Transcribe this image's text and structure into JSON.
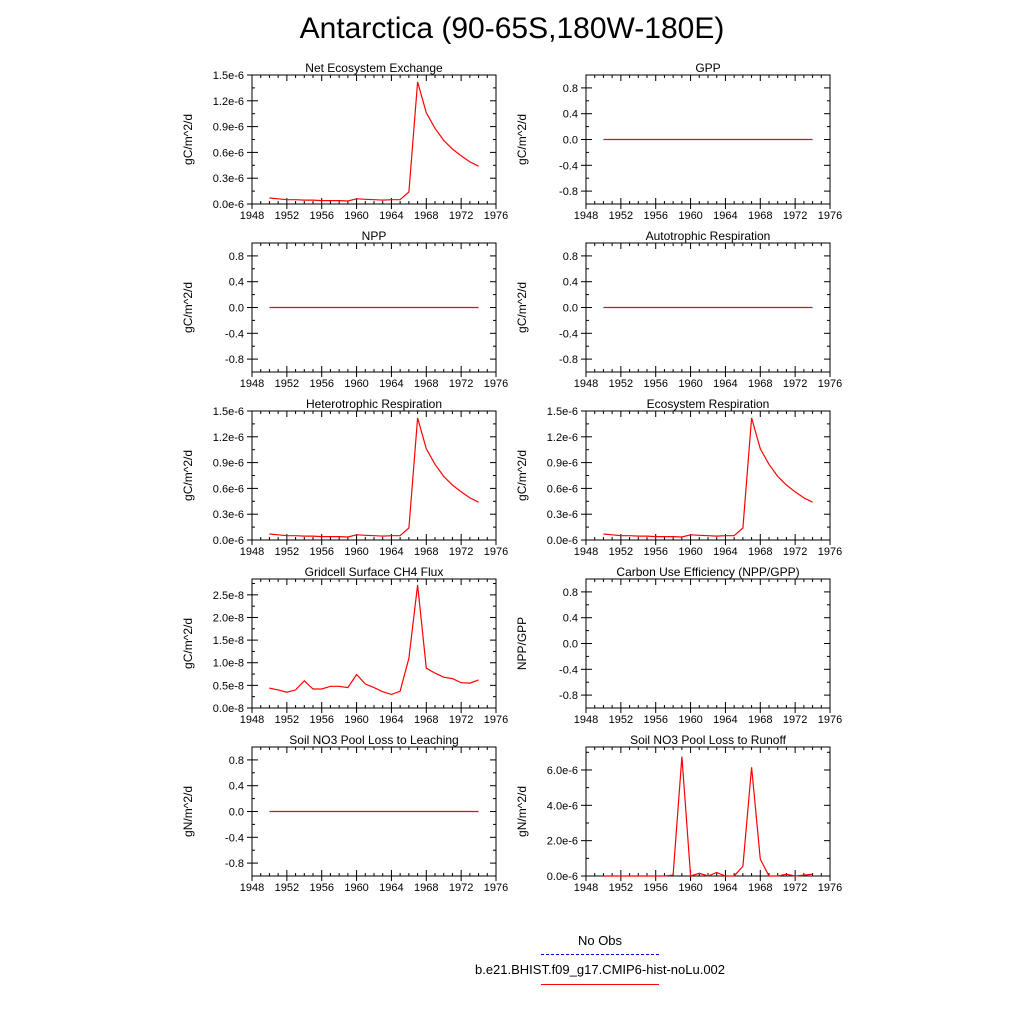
{
  "page": {
    "title": "Antarctica (90-65S,180W-180E)"
  },
  "legend": {
    "items": [
      {
        "label": "No Obs",
        "color": "#0000ff",
        "style": "dashed"
      },
      {
        "label": "b.e21.BHIST.f09_g17.CMIP6-hist-noLu.002",
        "color": "#ff0000",
        "style": "solid"
      }
    ]
  },
  "chart_data": [
    {
      "type": "line",
      "title": "Net Ecosystem Exchange",
      "ylabel": "gC/m^2/d",
      "xlim": [
        1948,
        1976
      ],
      "xticks": [
        "1948",
        "1952",
        "1956",
        "1960",
        "1964",
        "1968",
        "1972",
        "1976"
      ],
      "ylim": [
        0,
        1.5
      ],
      "yticks": [
        "0.0e-6",
        "0.3e-6",
        "0.6e-6",
        "0.9e-6",
        "1.2e-6",
        "1.5e-6"
      ],
      "ytick_values": [
        0,
        0.3,
        0.6,
        0.9,
        1.2,
        1.5
      ],
      "series": [
        {
          "color": "#ff0000",
          "x": [
            1950,
            1951,
            1952,
            1953,
            1954,
            1955,
            1956,
            1957,
            1958,
            1959,
            1960,
            1961,
            1962,
            1963,
            1964,
            1965,
            1966,
            1967,
            1968,
            1969,
            1970,
            1971,
            1972,
            1973,
            1974
          ],
          "y": [
            0.07,
            0.06,
            0.05,
            0.05,
            0.045,
            0.045,
            0.04,
            0.04,
            0.04,
            0.035,
            0.06,
            0.055,
            0.05,
            0.045,
            0.05,
            0.05,
            0.14,
            1.42,
            1.06,
            0.88,
            0.74,
            0.64,
            0.56,
            0.49,
            0.44
          ]
        }
      ]
    },
    {
      "type": "line",
      "title": "GPP",
      "ylabel": "gC/m^2/d",
      "xlim": [
        1948,
        1976
      ],
      "xticks": [
        "1948",
        "1952",
        "1956",
        "1960",
        "1964",
        "1968",
        "1972",
        "1976"
      ],
      "ylim": [
        -1,
        1
      ],
      "yticks": [
        "-0.8",
        "-0.4",
        "0.0",
        "0.4",
        "0.8"
      ],
      "ytick_values": [
        -0.8,
        -0.4,
        0,
        0.4,
        0.8
      ],
      "series": [
        {
          "color": "#ff0000",
          "x": [
            1950,
            1974
          ],
          "y": [
            0,
            0
          ]
        }
      ]
    },
    {
      "type": "line",
      "title": "NPP",
      "ylabel": "gC/m^2/d",
      "xlim": [
        1948,
        1976
      ],
      "xticks": [
        "1948",
        "1952",
        "1956",
        "1960",
        "1964",
        "1968",
        "1972",
        "1976"
      ],
      "ylim": [
        -1,
        1
      ],
      "yticks": [
        "-0.8",
        "-0.4",
        "0.0",
        "0.4",
        "0.8"
      ],
      "ytick_values": [
        -0.8,
        -0.4,
        0,
        0.4,
        0.8
      ],
      "series": [
        {
          "color": "#ff0000",
          "x": [
            1950,
            1974
          ],
          "y": [
            0,
            0
          ]
        }
      ]
    },
    {
      "type": "line",
      "title": "Autotrophic Respiration",
      "ylabel": "gC/m^2/d",
      "xlim": [
        1948,
        1976
      ],
      "xticks": [
        "1948",
        "1952",
        "1956",
        "1960",
        "1964",
        "1968",
        "1972",
        "1976"
      ],
      "ylim": [
        -1,
        1
      ],
      "yticks": [
        "-0.8",
        "-0.4",
        "0.0",
        "0.4",
        "0.8"
      ],
      "ytick_values": [
        -0.8,
        -0.4,
        0,
        0.4,
        0.8
      ],
      "series": [
        {
          "color": "#ff0000",
          "x": [
            1950,
            1974
          ],
          "y": [
            0,
            0
          ]
        }
      ]
    },
    {
      "type": "line",
      "title": "Heterotrophic Respiration",
      "ylabel": "gC/m^2/d",
      "xlim": [
        1948,
        1976
      ],
      "xticks": [
        "1948",
        "1952",
        "1956",
        "1960",
        "1964",
        "1968",
        "1972",
        "1976"
      ],
      "ylim": [
        0,
        1.5
      ],
      "yticks": [
        "0.0e-6",
        "0.3e-6",
        "0.6e-6",
        "0.9e-6",
        "1.2e-6",
        "1.5e-6"
      ],
      "ytick_values": [
        0,
        0.3,
        0.6,
        0.9,
        1.2,
        1.5
      ],
      "series": [
        {
          "color": "#ff0000",
          "x": [
            1950,
            1951,
            1952,
            1953,
            1954,
            1955,
            1956,
            1957,
            1958,
            1959,
            1960,
            1961,
            1962,
            1963,
            1964,
            1965,
            1966,
            1967,
            1968,
            1969,
            1970,
            1971,
            1972,
            1973,
            1974
          ],
          "y": [
            0.07,
            0.06,
            0.05,
            0.05,
            0.045,
            0.045,
            0.04,
            0.04,
            0.04,
            0.035,
            0.06,
            0.055,
            0.05,
            0.045,
            0.05,
            0.05,
            0.14,
            1.42,
            1.06,
            0.88,
            0.74,
            0.64,
            0.56,
            0.49,
            0.44
          ]
        }
      ]
    },
    {
      "type": "line",
      "title": "Ecosystem Respiration",
      "ylabel": "gC/m^2/d",
      "xlim": [
        1948,
        1976
      ],
      "xticks": [
        "1948",
        "1952",
        "1956",
        "1960",
        "1964",
        "1968",
        "1972",
        "1976"
      ],
      "ylim": [
        0,
        1.5
      ],
      "yticks": [
        "0.0e-6",
        "0.3e-6",
        "0.6e-6",
        "0.9e-6",
        "1.2e-6",
        "1.5e-6"
      ],
      "ytick_values": [
        0,
        0.3,
        0.6,
        0.9,
        1.2,
        1.5
      ],
      "series": [
        {
          "color": "#ff0000",
          "x": [
            1950,
            1951,
            1952,
            1953,
            1954,
            1955,
            1956,
            1957,
            1958,
            1959,
            1960,
            1961,
            1962,
            1963,
            1964,
            1965,
            1966,
            1967,
            1968,
            1969,
            1970,
            1971,
            1972,
            1973,
            1974
          ],
          "y": [
            0.07,
            0.06,
            0.05,
            0.05,
            0.045,
            0.045,
            0.04,
            0.04,
            0.04,
            0.035,
            0.06,
            0.055,
            0.05,
            0.045,
            0.05,
            0.05,
            0.14,
            1.42,
            1.06,
            0.88,
            0.74,
            0.64,
            0.56,
            0.49,
            0.44
          ]
        }
      ]
    },
    {
      "type": "line",
      "title": "Gridcell Surface CH4 Flux",
      "ylabel": "gC/m^2/d",
      "xlim": [
        1948,
        1976
      ],
      "xticks": [
        "1948",
        "1952",
        "1956",
        "1960",
        "1964",
        "1968",
        "1972",
        "1976"
      ],
      "ylim": [
        0,
        2.85
      ],
      "yticks": [
        "0.0e-8",
        "0.5e-8",
        "1.0e-8",
        "1.5e-8",
        "2.0e-8",
        "2.5e-8"
      ],
      "ytick_values": [
        0,
        0.5,
        1.0,
        1.5,
        2.0,
        2.5
      ],
      "series": [
        {
          "color": "#ff0000",
          "x": [
            1950,
            1951,
            1952,
            1953,
            1954,
            1955,
            1956,
            1957,
            1958,
            1959,
            1960,
            1961,
            1962,
            1963,
            1964,
            1965,
            1966,
            1967,
            1968,
            1969,
            1970,
            1971,
            1972,
            1973,
            1974
          ],
          "y": [
            0.44,
            0.4,
            0.35,
            0.4,
            0.6,
            0.42,
            0.42,
            0.48,
            0.48,
            0.45,
            0.74,
            0.53,
            0.45,
            0.36,
            0.3,
            0.37,
            1.1,
            2.72,
            0.88,
            0.77,
            0.68,
            0.65,
            0.56,
            0.55,
            0.62
          ]
        }
      ]
    },
    {
      "type": "line",
      "title": "Carbon Use Efficiency (NPP/GPP)",
      "ylabel": "NPP/GPP",
      "xlim": [
        1948,
        1976
      ],
      "xticks": [
        "1948",
        "1952",
        "1956",
        "1960",
        "1964",
        "1968",
        "1972",
        "1976"
      ],
      "ylim": [
        -1,
        1
      ],
      "yticks": [
        "-0.8",
        "-0.4",
        "0.0",
        "0.4",
        "0.8"
      ],
      "ytick_values": [
        -0.8,
        -0.4,
        0,
        0.4,
        0.8
      ],
      "series": []
    },
    {
      "type": "line",
      "title": "Soil NO3 Pool Loss to Leaching",
      "ylabel": "gN/m^2/d",
      "xlim": [
        1948,
        1976
      ],
      "xticks": [
        "1948",
        "1952",
        "1956",
        "1960",
        "1964",
        "1968",
        "1972",
        "1976"
      ],
      "ylim": [
        -1,
        1
      ],
      "yticks": [
        "-0.8",
        "-0.4",
        "0.0",
        "0.4",
        "0.8"
      ],
      "ytick_values": [
        -0.8,
        -0.4,
        0,
        0.4,
        0.8
      ],
      "series": [
        {
          "color": "#ff0000",
          "x": [
            1950,
            1974
          ],
          "y": [
            0,
            0
          ]
        }
      ]
    },
    {
      "type": "line",
      "title": "Soil NO3 Pool Loss to Runoff",
      "ylabel": "gN/m^2/d",
      "xlim": [
        1948,
        1976
      ],
      "xticks": [
        "1948",
        "1952",
        "1956",
        "1960",
        "1964",
        "1968",
        "1972",
        "1976"
      ],
      "ylim": [
        0,
        7.3
      ],
      "yticks": [
        "0.0e-6",
        "2.0e-6",
        "4.0e-6",
        "6.0e-6"
      ],
      "ytick_values": [
        0,
        2.0,
        4.0,
        6.0
      ],
      "series": [
        {
          "color": "#ff0000",
          "x": [
            1950,
            1951,
            1952,
            1953,
            1954,
            1955,
            1956,
            1957,
            1958,
            1959,
            1960,
            1961,
            1962,
            1963,
            1964,
            1965,
            1966,
            1967,
            1968,
            1969,
            1970,
            1971,
            1972,
            1973,
            1974
          ],
          "y": [
            0,
            0,
            0,
            0,
            0,
            0,
            0,
            0,
            0.05,
            6.75,
            0,
            0.15,
            0,
            0.2,
            0,
            0,
            0.55,
            6.15,
            0.95,
            0,
            0,
            0.1,
            0,
            0.05,
            0.1
          ]
        }
      ]
    }
  ]
}
